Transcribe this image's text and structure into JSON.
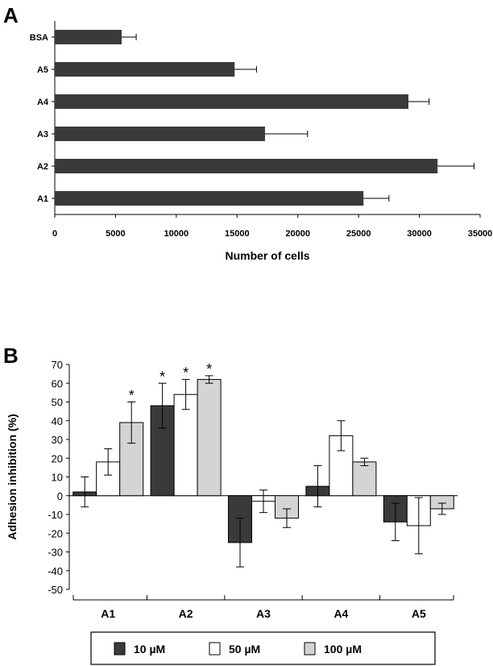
{
  "panels": [
    {
      "letter": "A"
    },
    {
      "letter": "B"
    }
  ],
  "colors": {
    "dark_bar": "#3a3a3a",
    "white_bar": "#ffffff",
    "gray_bar": "#d4d4d4",
    "axis": "#000000"
  },
  "chart_data": [
    {
      "type": "bar",
      "orientation": "horizontal",
      "panel": "A",
      "categories": [
        "BSA",
        "A5",
        "A4",
        "A3",
        "A2",
        "A1"
      ],
      "values": [
        5500,
        14800,
        29100,
        17300,
        31500,
        25400
      ],
      "errors": [
        1200,
        1800,
        1700,
        3500,
        3000,
        2100
      ],
      "xlabel": "Number of cells",
      "ylabel": "",
      "xlim": [
        0,
        35000
      ],
      "xticks": [
        "0",
        "5000",
        "10000",
        "15000",
        "20000",
        "25000",
        "30000",
        "35000"
      ],
      "grid": false
    },
    {
      "type": "bar",
      "orientation": "vertical",
      "panel": "B",
      "categories": [
        "A1",
        "A2",
        "A3",
        "A4",
        "A5"
      ],
      "series": [
        {
          "name": "10 µM",
          "values": [
            2,
            48,
            -25,
            5,
            -14
          ],
          "errors": [
            8,
            12,
            13,
            11,
            10
          ],
          "significant": [
            false,
            true,
            false,
            false,
            false
          ]
        },
        {
          "name": "50 µM",
          "values": [
            18,
            54,
            -3,
            32,
            -16
          ],
          "errors": [
            7,
            8,
            6,
            8,
            15
          ],
          "significant": [
            false,
            true,
            false,
            false,
            false
          ]
        },
        {
          "name": "100 µM",
          "values": [
            39,
            62,
            -12,
            18,
            -7
          ],
          "errors": [
            11,
            2,
            5,
            2,
            3
          ],
          "significant": [
            true,
            true,
            false,
            false,
            false
          ]
        }
      ],
      "significance_marker": "*",
      "ylabel": "Adhesion inhibition (%)",
      "xlabel": "",
      "ylim": [
        -50,
        70
      ],
      "yticks": [
        "70",
        "60",
        "50",
        "40",
        "30",
        "20",
        "10",
        "0",
        "-10",
        "-20",
        "-30",
        "-40",
        "-50"
      ],
      "grid": false,
      "legend_position": "bottom"
    }
  ]
}
